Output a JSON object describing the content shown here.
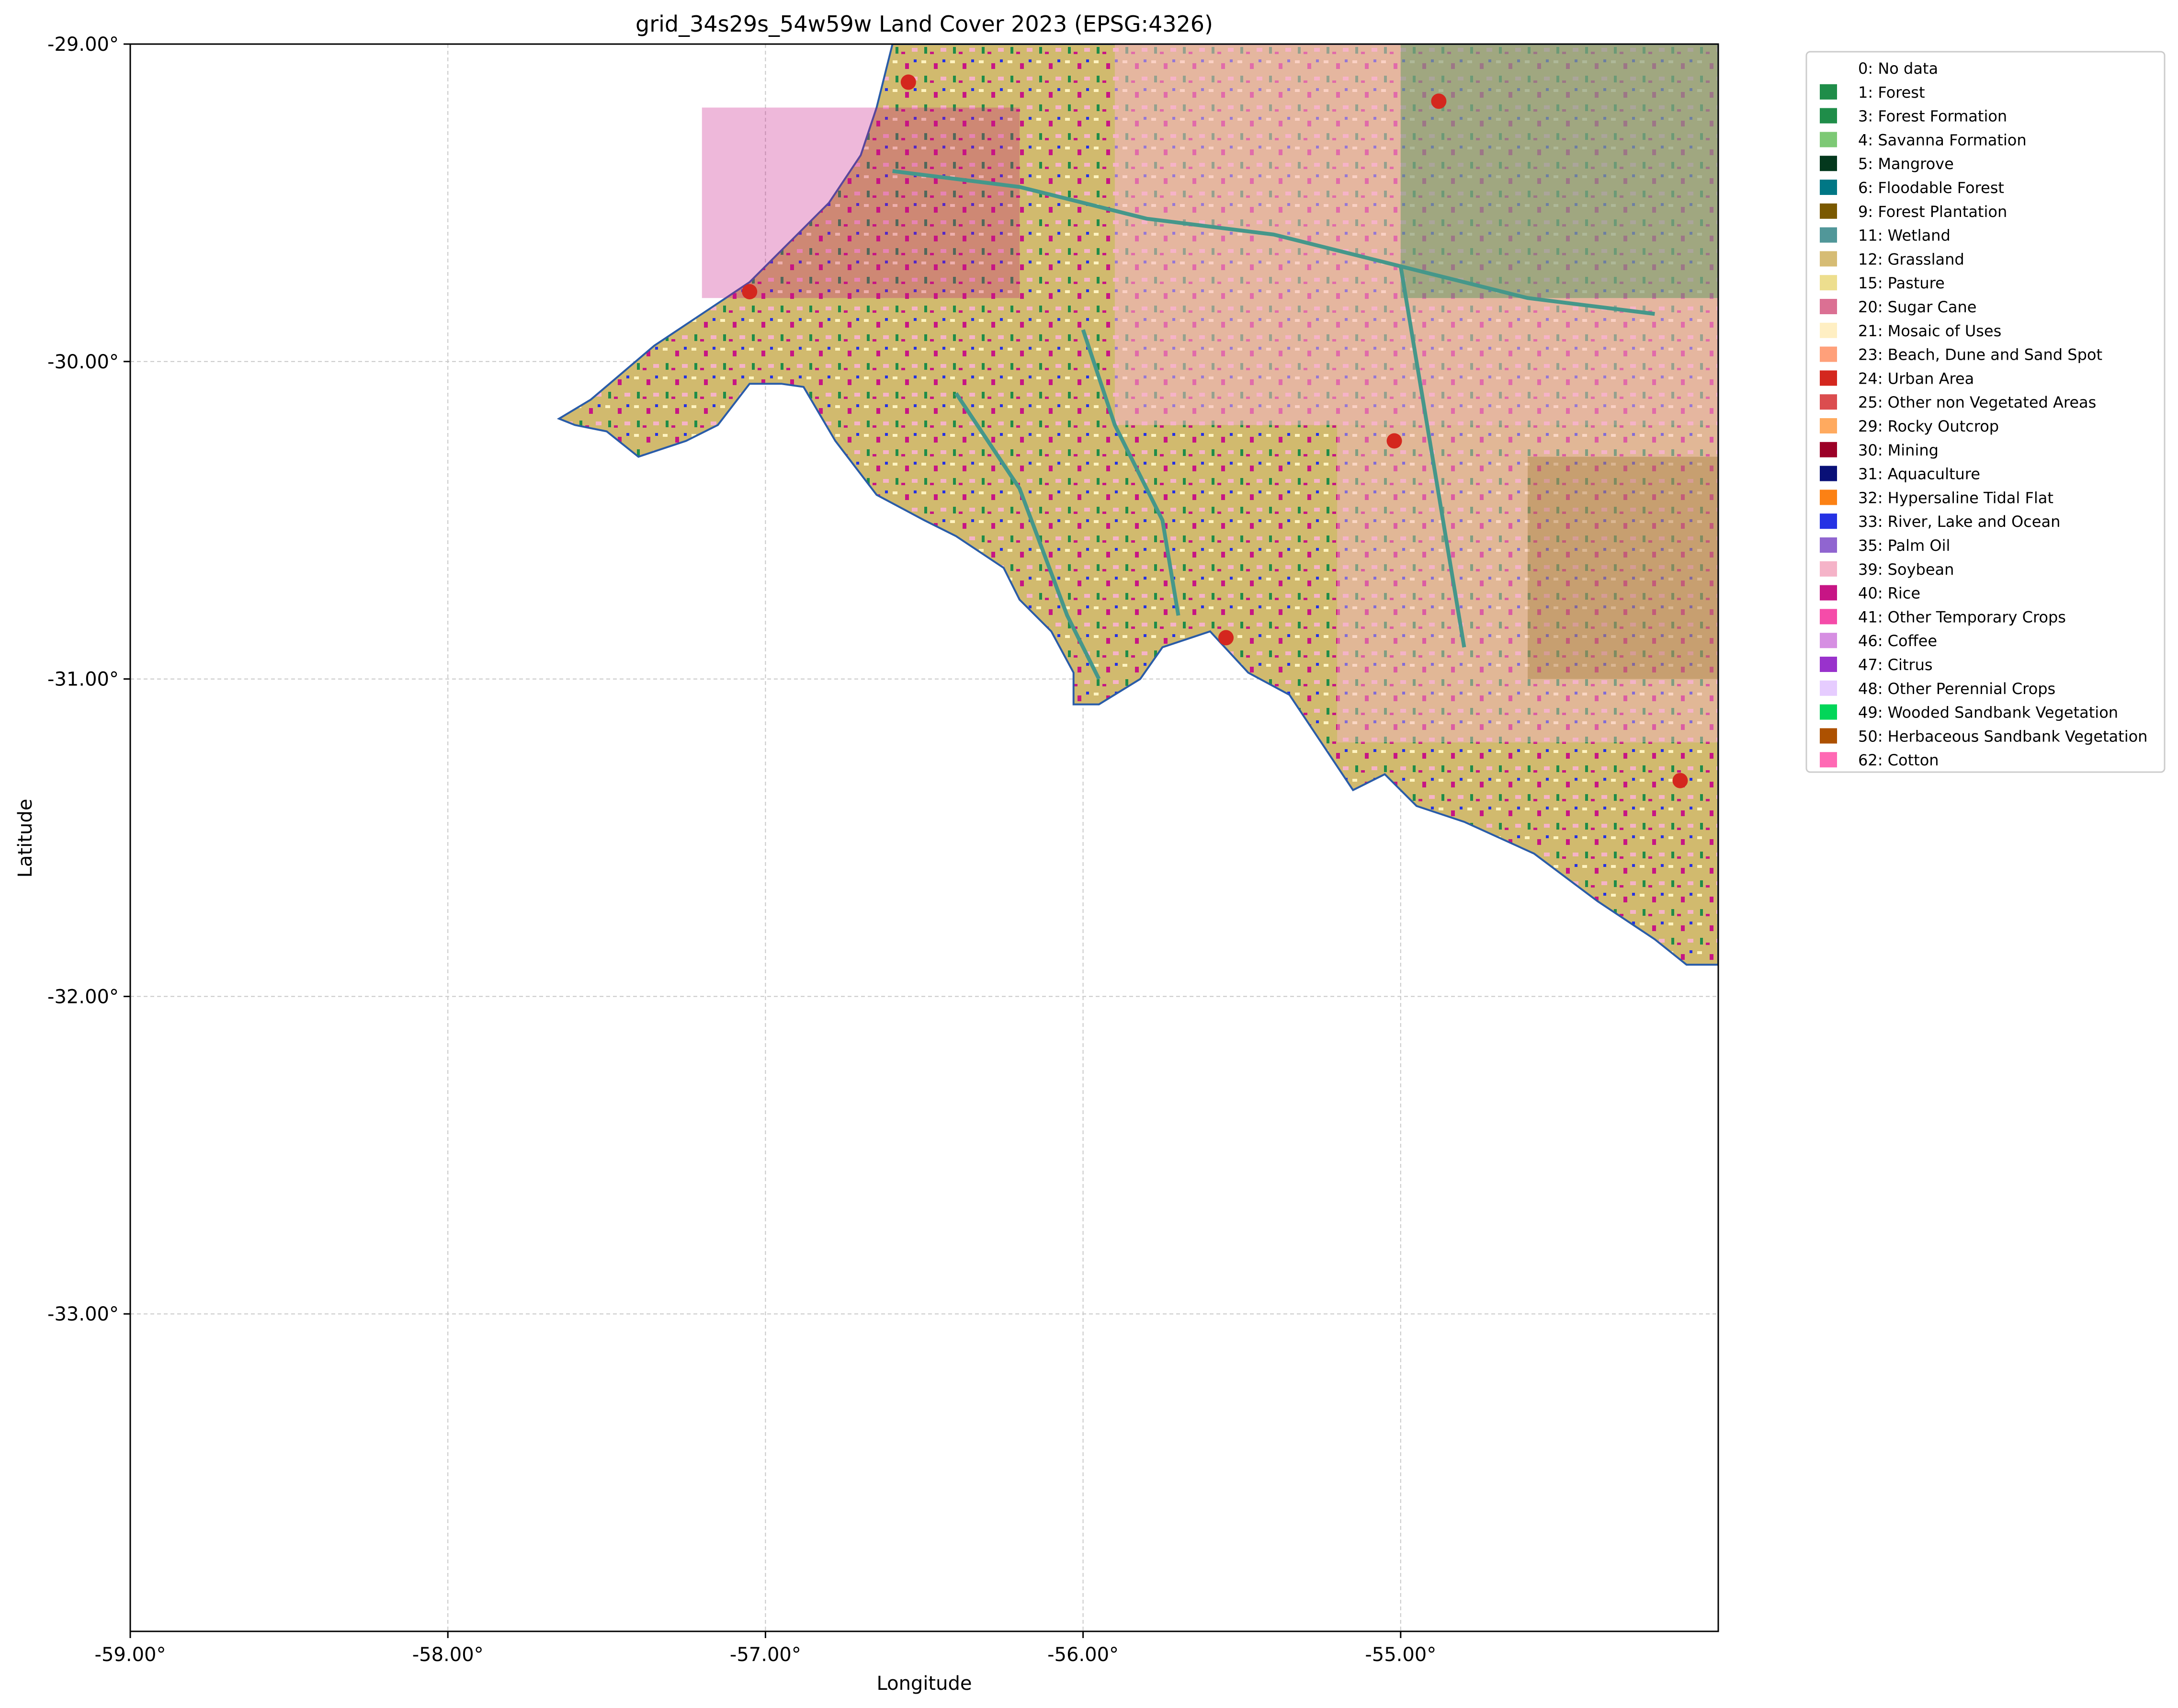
{
  "map": {
    "title": "grid_34s29s_54w59w Land Cover 2023 (EPSG:4326)",
    "xlabel": "Longitude",
    "ylabel": "Latitude",
    "xlim": [
      -59.0,
      -54.0
    ],
    "ylim": [
      -34.0,
      -29.0
    ],
    "x_ticks": [
      {
        "value": -59.0,
        "label": "-59.00°"
      },
      {
        "value": -58.0,
        "label": "-58.00°"
      },
      {
        "value": -57.0,
        "label": "-57.00°"
      },
      {
        "value": -56.0,
        "label": "-56.00°"
      },
      {
        "value": -55.0,
        "label": "-55.00°"
      }
    ],
    "y_ticks": [
      {
        "value": -29.0,
        "label": "-29.00°"
      },
      {
        "value": -30.0,
        "label": "-30.00°"
      },
      {
        "value": -31.0,
        "label": "-31.00°"
      },
      {
        "value": -32.0,
        "label": "-32.00°"
      },
      {
        "value": -33.0,
        "label": "-33.00°"
      }
    ],
    "grid": true,
    "legend_position": "outside-right-top",
    "data_extent_polygon": [
      [
        -56.6,
        -29.0
      ],
      [
        -54.0,
        -29.0
      ],
      [
        -54.0,
        -31.9
      ],
      [
        -54.1,
        -31.9
      ],
      [
        -54.2,
        -31.82
      ],
      [
        -54.38,
        -31.7
      ],
      [
        -54.58,
        -31.55
      ],
      [
        -54.8,
        -31.45
      ],
      [
        -54.95,
        -31.4
      ],
      [
        -55.05,
        -31.3
      ],
      [
        -55.15,
        -31.35
      ],
      [
        -55.25,
        -31.2
      ],
      [
        -55.35,
        -31.05
      ],
      [
        -55.48,
        -30.98
      ],
      [
        -55.6,
        -30.85
      ],
      [
        -55.75,
        -30.9
      ],
      [
        -55.82,
        -31.0
      ],
      [
        -55.95,
        -31.08
      ],
      [
        -56.03,
        -31.08
      ],
      [
        -56.03,
        -30.98
      ],
      [
        -56.1,
        -30.85
      ],
      [
        -56.2,
        -30.75
      ],
      [
        -56.25,
        -30.65
      ],
      [
        -56.4,
        -30.55
      ],
      [
        -56.5,
        -30.5
      ],
      [
        -56.65,
        -30.42
      ],
      [
        -56.78,
        -30.25
      ],
      [
        -56.88,
        -30.08
      ],
      [
        -56.95,
        -30.07
      ],
      [
        -57.05,
        -30.07
      ],
      [
        -57.15,
        -30.2
      ],
      [
        -57.25,
        -30.25
      ],
      [
        -57.4,
        -30.3
      ],
      [
        -57.5,
        -30.22
      ],
      [
        -57.6,
        -30.2
      ],
      [
        -57.65,
        -30.18
      ],
      [
        -57.55,
        -30.12
      ],
      [
        -57.35,
        -29.95
      ],
      [
        -57.2,
        -29.85
      ],
      [
        -57.05,
        -29.75
      ],
      [
        -56.95,
        -29.65
      ],
      [
        -56.8,
        -29.5
      ],
      [
        -56.7,
        -29.35
      ],
      [
        -56.65,
        -29.2
      ],
      [
        -56.62,
        -29.08
      ]
    ],
    "land_cover_colors": {
      "grassland": "#d1ba6e",
      "forest": "#1f8d49",
      "rice": "#c71585",
      "soybean": "#f5b3c8",
      "mosaic": "#fff3bf",
      "plantation": "#7a5900",
      "water": "#2532e4",
      "urban": "#d4271e",
      "wetland": "#45978a"
    },
    "river_color": "#2a5ca8"
  },
  "legend": {
    "items": [
      {
        "label": "0: No data",
        "color": "#ffffff"
      },
      {
        "label": "1: Forest",
        "color": "#1f8d49"
      },
      {
        "label": "3: Forest Formation",
        "color": "#1f8d49"
      },
      {
        "label": "4: Savanna Formation",
        "color": "#7dc975"
      },
      {
        "label": "5: Mangrove",
        "color": "#04381d"
      },
      {
        "label": "6: Floodable Forest",
        "color": "#007785"
      },
      {
        "label": "9: Forest Plantation",
        "color": "#7a5900"
      },
      {
        "label": "11: Wetland",
        "color": "#519799"
      },
      {
        "label": "12: Grassland",
        "color": "#d6bc74"
      },
      {
        "label": "15: Pasture",
        "color": "#edde8e"
      },
      {
        "label": "20: Sugar Cane",
        "color": "#db7093"
      },
      {
        "label": "21: Mosaic of Uses",
        "color": "#ffefc3"
      },
      {
        "label": "23: Beach, Dune and Sand Spot",
        "color": "#ffa07a"
      },
      {
        "label": "24: Urban Area",
        "color": "#d4271e"
      },
      {
        "label": "25: Other non Vegetated Areas",
        "color": "#db4d4f"
      },
      {
        "label": "29: Rocky Outcrop",
        "color": "#ffaa5f"
      },
      {
        "label": "30: Mining",
        "color": "#9c0027"
      },
      {
        "label": "31: Aquaculture",
        "color": "#091077"
      },
      {
        "label": "32: Hypersaline Tidal Flat",
        "color": "#fc8114"
      },
      {
        "label": "33: River, Lake and Ocean",
        "color": "#2532e4"
      },
      {
        "label": "35: Palm Oil",
        "color": "#9065d0"
      },
      {
        "label": "39: Soybean",
        "color": "#f5b3c8"
      },
      {
        "label": "40: Rice",
        "color": "#c71585"
      },
      {
        "label": "41: Other Temporary Crops",
        "color": "#f54ca9"
      },
      {
        "label": "46: Coffee",
        "color": "#d68fe2"
      },
      {
        "label": "47: Citrus",
        "color": "#9932cc"
      },
      {
        "label": "48: Other Perennial Crops",
        "color": "#e6ccff"
      },
      {
        "label": "49: Wooded Sandbank Vegetation",
        "color": "#02d659"
      },
      {
        "label": "50: Herbaceous Sandbank Vegetation",
        "color": "#ad5100"
      },
      {
        "label": "62: Cotton",
        "color": "#ff69b4"
      }
    ]
  }
}
